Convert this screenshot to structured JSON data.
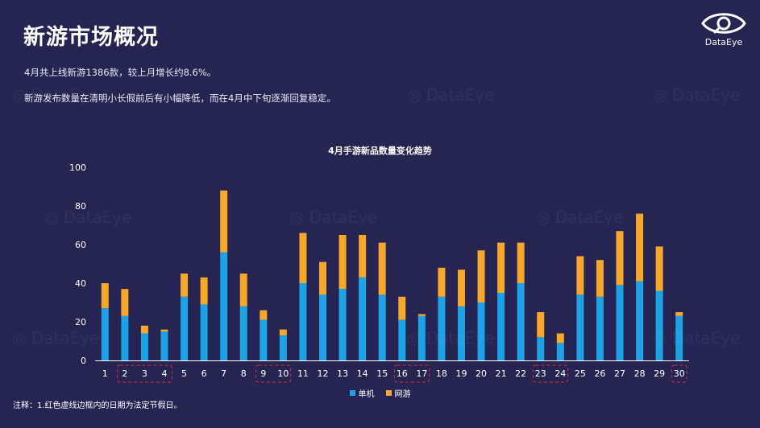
{
  "header": {
    "title": "新游市场概况",
    "desc_line1": "4月共上线新游1386款，较上月增长约8.6%。",
    "desc_line2": "新游发布数量在清明小长假前后有小幅降低，而在4月中下旬逐渐回复稳定。"
  },
  "brand": {
    "logo_text": "DataEye",
    "watermark_text": "DataEye"
  },
  "note": "注释：1.红色虚线边框内的日期为法定节假日。",
  "colors": {
    "background": "#262453",
    "single": "#1aa3e6",
    "online": "#f7a826",
    "holiday": "#d02d3f"
  },
  "chart_data": {
    "type": "bar",
    "stacked": true,
    "title": "4月手游新品数量变化趋势",
    "categories": [
      "1",
      "2",
      "3",
      "4",
      "5",
      "6",
      "7",
      "8",
      "9",
      "10",
      "11",
      "12",
      "13",
      "14",
      "15",
      "16",
      "17",
      "18",
      "19",
      "20",
      "21",
      "22",
      "23",
      "24",
      "25",
      "26",
      "27",
      "28",
      "29",
      "30"
    ],
    "series": [
      {
        "name": "单机",
        "color": "#1aa3e6",
        "values": [
          27,
          23,
          14,
          15,
          33,
          29,
          56,
          28,
          21,
          13,
          40,
          34,
          37,
          43,
          34,
          21,
          23,
          33,
          28,
          30,
          35,
          40,
          12,
          9,
          34,
          33,
          39,
          41,
          36,
          23
        ]
      },
      {
        "name": "网游",
        "color": "#f7a826",
        "values": [
          13,
          14,
          4,
          1,
          12,
          14,
          32,
          17,
          5,
          3,
          26,
          17,
          28,
          22,
          27,
          12,
          1,
          15,
          19,
          27,
          26,
          21,
          13,
          5,
          20,
          19,
          28,
          35,
          23,
          2
        ]
      }
    ],
    "ylim": [
      0,
      100
    ],
    "yticks": [
      "0",
      "20",
      "40",
      "60",
      "80",
      "100"
    ],
    "holiday_groups": [
      [
        "2",
        "3",
        "4"
      ],
      [
        "9",
        "10"
      ],
      [
        "16",
        "17"
      ],
      [
        "23",
        "24"
      ],
      [
        "30"
      ]
    ],
    "legend_position": "bottom-center",
    "grid": false
  }
}
